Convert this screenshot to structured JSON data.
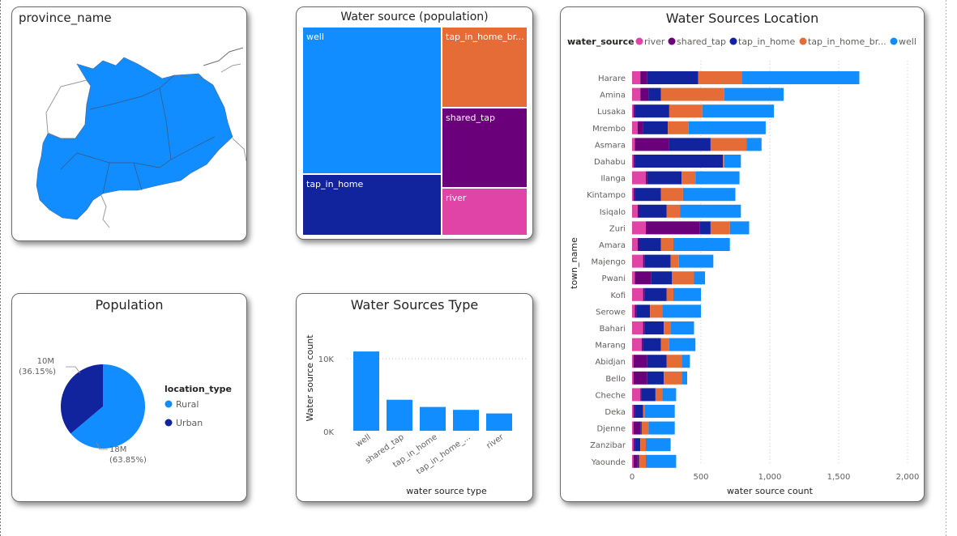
{
  "map_card": {
    "title": "province_name"
  },
  "treemap_card": {
    "title": "Water source (population)",
    "tiles": [
      {
        "label": "well",
        "color": "#118DFF"
      },
      {
        "label": "tap_in_home_br...",
        "color": "#E66C37"
      },
      {
        "label": "shared_tap",
        "color": "#6B007B"
      },
      {
        "label": "tap_in_home",
        "color": "#12239E"
      },
      {
        "label": "river",
        "color": "#E044A7"
      }
    ]
  },
  "population_card": {
    "title": "Population",
    "legend_title": "location_type",
    "legend": [
      {
        "label": "Rural",
        "color": "#118DFF"
      },
      {
        "label": "Urban",
        "color": "#12239E"
      }
    ],
    "labels": {
      "urban_value": "10M",
      "urban_pct": "(36.15%)",
      "rural_value": "18M",
      "rural_pct": "(63.85%)"
    }
  },
  "types_card": {
    "title": "Water Sources Type",
    "xlabel": "water source type",
    "ylabel": "Water source count",
    "ticks": [
      "10K",
      "0K"
    ]
  },
  "location_card": {
    "title": "Water Sources Location",
    "legend_title": "water_source",
    "legend": [
      {
        "label": "river",
        "color": "#E044A7"
      },
      {
        "label": "shared_tap",
        "color": "#6B007B"
      },
      {
        "label": "tap_in_home",
        "color": "#12239E"
      },
      {
        "label": "tap_in_home_br...",
        "color": "#E66C37"
      },
      {
        "label": "well",
        "color": "#118DFF"
      }
    ],
    "xlabel": "water source count",
    "ylabel": "town_name"
  },
  "chart_data": [
    {
      "type": "pie",
      "title": "Population",
      "categories": [
        "Rural",
        "Urban"
      ],
      "values": [
        18,
        10
      ],
      "percentages": [
        63.85,
        36.15
      ],
      "unit": "M",
      "colors": [
        "#118DFF",
        "#12239E"
      ]
    },
    {
      "type": "bar",
      "title": "Water Sources Type",
      "categories": [
        "well",
        "shared_tap",
        "tap_in_home",
        "tap_in_home_...",
        "river"
      ],
      "values": [
        11000,
        4300,
        3300,
        2900,
        2400
      ],
      "xlabel": "water source type",
      "ylabel": "Water source count",
      "ylim": [
        0,
        12000
      ],
      "yticks": [
        "0K",
        "10K"
      ],
      "color": "#118DFF"
    },
    {
      "type": "bar",
      "orientation": "horizontal",
      "stacked": true,
      "title": "Water Sources Location",
      "xlabel": "water source count",
      "ylabel": "town_name",
      "xlim": [
        0,
        2000
      ],
      "xticks": [
        "0",
        "500",
        "1,000",
        "1,500",
        "2,000"
      ],
      "categories": [
        "Harare",
        "Amina",
        "Lusaka",
        "Mrembo",
        "Asmara",
        "Dahabu",
        "Ilanga",
        "Kintampo",
        "Isiqalo",
        "Zuri",
        "Amara",
        "Majengo",
        "Pwani",
        "Kofi",
        "Serowe",
        "Bahari",
        "Marang",
        "Abidjan",
        "Bello",
        "Cheche",
        "Deka",
        "Djenne",
        "Zanzibar",
        "Yaounde"
      ],
      "series": [
        {
          "name": "river",
          "color": "#E044A7",
          "values": [
            60,
            60,
            10,
            40,
            20,
            10,
            100,
            10,
            40,
            100,
            40,
            80,
            20,
            80,
            20,
            80,
            70,
            10,
            10,
            60,
            10,
            10,
            10,
            10
          ]
        },
        {
          "name": "shared_tap",
          "color": "#6B007B",
          "values": [
            50,
            60,
            10,
            40,
            250,
            10,
            10,
            10,
            10,
            390,
            10,
            10,
            120,
            10,
            10,
            10,
            10,
            100,
            100,
            10,
            10,
            50,
            10,
            30
          ]
        },
        {
          "name": "tap_in_home",
          "color": "#12239E",
          "values": [
            370,
            90,
            250,
            180,
            300,
            640,
            250,
            190,
            200,
            80,
            160,
            190,
            150,
            160,
            100,
            140,
            130,
            140,
            120,
            100,
            60,
            10,
            40,
            10
          ]
        },
        {
          "name": "tap_in_home_br...",
          "color": "#E66C37",
          "values": [
            320,
            460,
            240,
            150,
            260,
            10,
            100,
            160,
            100,
            140,
            90,
            60,
            160,
            50,
            90,
            50,
            60,
            110,
            130,
            50,
            10,
            50,
            40,
            50
          ]
        },
        {
          "name": "well",
          "color": "#118DFF",
          "values": [
            850,
            430,
            520,
            560,
            110,
            120,
            320,
            380,
            440,
            140,
            410,
            250,
            80,
            200,
            280,
            170,
            190,
            60,
            40,
            100,
            220,
            190,
            180,
            220
          ]
        }
      ]
    }
  ]
}
